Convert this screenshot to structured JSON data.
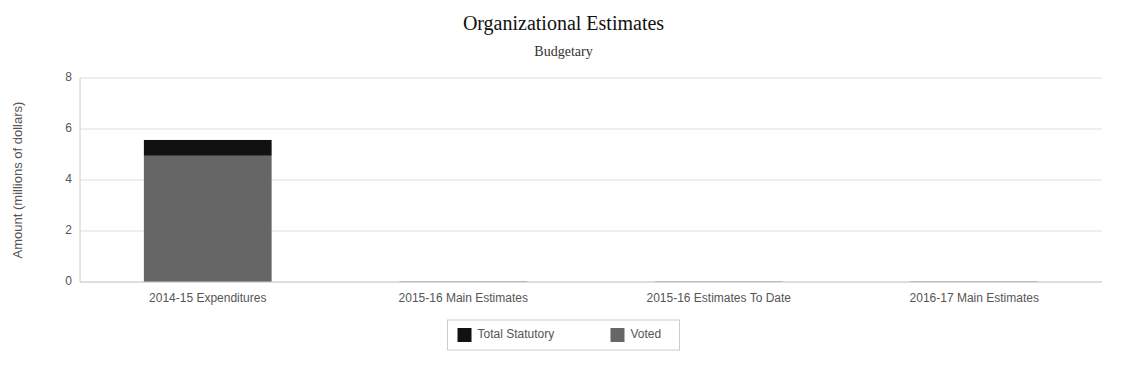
{
  "chart_data": {
    "type": "bar",
    "title": "Organizational Estimates",
    "subtitle": "Budgetary",
    "categories": [
      "2014-15 Expenditures",
      "2015-16 Main Estimates",
      "2015-16 Estimates To Date",
      "2016-17 Main Estimates"
    ],
    "series": [
      {
        "name": "Voted",
        "color": "#666666",
        "values": [
          4.95,
          0.02,
          0.02,
          0.02
        ]
      },
      {
        "name": "Total Statutory",
        "color": "#111111",
        "values": [
          0.62,
          0,
          0,
          0
        ]
      }
    ],
    "stacked": true,
    "ylim": [
      0,
      8
    ],
    "yticks": [
      0,
      2,
      4,
      6,
      8
    ],
    "ylabel": "Amount (millions of dollars)",
    "grid": true,
    "legend": "bottom"
  }
}
